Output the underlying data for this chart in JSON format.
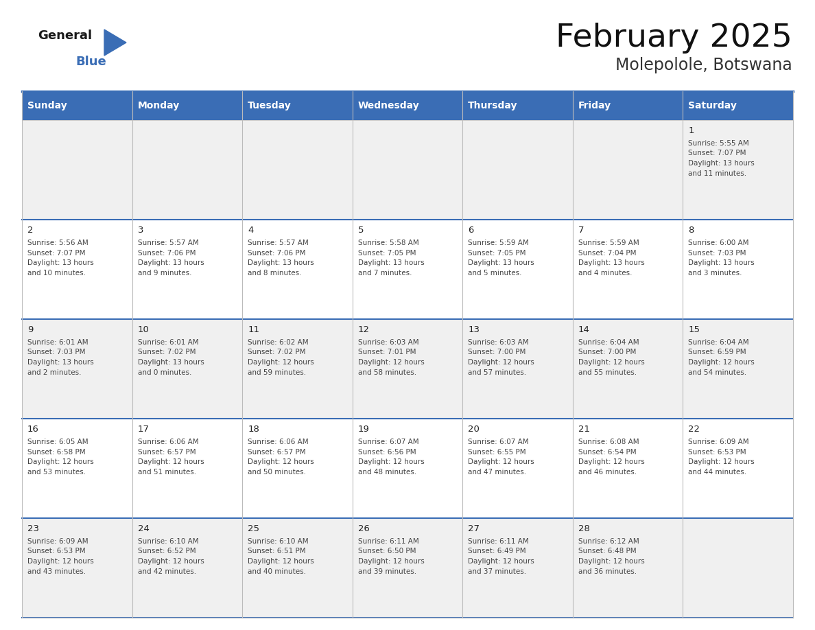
{
  "title": "February 2025",
  "subtitle": "Molepolole, Botswana",
  "days_of_week": [
    "Sunday",
    "Monday",
    "Tuesday",
    "Wednesday",
    "Thursday",
    "Friday",
    "Saturday"
  ],
  "header_bg": "#3a6db5",
  "header_text": "#FFFFFF",
  "cell_bg_odd": "#f0f0f0",
  "cell_bg_even": "#ffffff",
  "border_color": "#3a6db5",
  "text_color": "#444444",
  "day_number_color": "#222222",
  "logo_text_color": "#1a1a1a",
  "logo_blue_color": "#3a6db5",
  "title_color": "#111111",
  "subtitle_color": "#333333",
  "calendar_data": [
    [
      {
        "day": null,
        "sunrise": null,
        "sunset": null,
        "daylight": null
      },
      {
        "day": null,
        "sunrise": null,
        "sunset": null,
        "daylight": null
      },
      {
        "day": null,
        "sunrise": null,
        "sunset": null,
        "daylight": null
      },
      {
        "day": null,
        "sunrise": null,
        "sunset": null,
        "daylight": null
      },
      {
        "day": null,
        "sunrise": null,
        "sunset": null,
        "daylight": null
      },
      {
        "day": null,
        "sunrise": null,
        "sunset": null,
        "daylight": null
      },
      {
        "day": 1,
        "sunrise": "5:55 AM",
        "sunset": "7:07 PM",
        "daylight": "13 hours\nand 11 minutes."
      }
    ],
    [
      {
        "day": 2,
        "sunrise": "5:56 AM",
        "sunset": "7:07 PM",
        "daylight": "13 hours\nand 10 minutes."
      },
      {
        "day": 3,
        "sunrise": "5:57 AM",
        "sunset": "7:06 PM",
        "daylight": "13 hours\nand 9 minutes."
      },
      {
        "day": 4,
        "sunrise": "5:57 AM",
        "sunset": "7:06 PM",
        "daylight": "13 hours\nand 8 minutes."
      },
      {
        "day": 5,
        "sunrise": "5:58 AM",
        "sunset": "7:05 PM",
        "daylight": "13 hours\nand 7 minutes."
      },
      {
        "day": 6,
        "sunrise": "5:59 AM",
        "sunset": "7:05 PM",
        "daylight": "13 hours\nand 5 minutes."
      },
      {
        "day": 7,
        "sunrise": "5:59 AM",
        "sunset": "7:04 PM",
        "daylight": "13 hours\nand 4 minutes."
      },
      {
        "day": 8,
        "sunrise": "6:00 AM",
        "sunset": "7:03 PM",
        "daylight": "13 hours\nand 3 minutes."
      }
    ],
    [
      {
        "day": 9,
        "sunrise": "6:01 AM",
        "sunset": "7:03 PM",
        "daylight": "13 hours\nand 2 minutes."
      },
      {
        "day": 10,
        "sunrise": "6:01 AM",
        "sunset": "7:02 PM",
        "daylight": "13 hours\nand 0 minutes."
      },
      {
        "day": 11,
        "sunrise": "6:02 AM",
        "sunset": "7:02 PM",
        "daylight": "12 hours\nand 59 minutes."
      },
      {
        "day": 12,
        "sunrise": "6:03 AM",
        "sunset": "7:01 PM",
        "daylight": "12 hours\nand 58 minutes."
      },
      {
        "day": 13,
        "sunrise": "6:03 AM",
        "sunset": "7:00 PM",
        "daylight": "12 hours\nand 57 minutes."
      },
      {
        "day": 14,
        "sunrise": "6:04 AM",
        "sunset": "7:00 PM",
        "daylight": "12 hours\nand 55 minutes."
      },
      {
        "day": 15,
        "sunrise": "6:04 AM",
        "sunset": "6:59 PM",
        "daylight": "12 hours\nand 54 minutes."
      }
    ],
    [
      {
        "day": 16,
        "sunrise": "6:05 AM",
        "sunset": "6:58 PM",
        "daylight": "12 hours\nand 53 minutes."
      },
      {
        "day": 17,
        "sunrise": "6:06 AM",
        "sunset": "6:57 PM",
        "daylight": "12 hours\nand 51 minutes."
      },
      {
        "day": 18,
        "sunrise": "6:06 AM",
        "sunset": "6:57 PM",
        "daylight": "12 hours\nand 50 minutes."
      },
      {
        "day": 19,
        "sunrise": "6:07 AM",
        "sunset": "6:56 PM",
        "daylight": "12 hours\nand 48 minutes."
      },
      {
        "day": 20,
        "sunrise": "6:07 AM",
        "sunset": "6:55 PM",
        "daylight": "12 hours\nand 47 minutes."
      },
      {
        "day": 21,
        "sunrise": "6:08 AM",
        "sunset": "6:54 PM",
        "daylight": "12 hours\nand 46 minutes."
      },
      {
        "day": 22,
        "sunrise": "6:09 AM",
        "sunset": "6:53 PM",
        "daylight": "12 hours\nand 44 minutes."
      }
    ],
    [
      {
        "day": 23,
        "sunrise": "6:09 AM",
        "sunset": "6:53 PM",
        "daylight": "12 hours\nand 43 minutes."
      },
      {
        "day": 24,
        "sunrise": "6:10 AM",
        "sunset": "6:52 PM",
        "daylight": "12 hours\nand 42 minutes."
      },
      {
        "day": 25,
        "sunrise": "6:10 AM",
        "sunset": "6:51 PM",
        "daylight": "12 hours\nand 40 minutes."
      },
      {
        "day": 26,
        "sunrise": "6:11 AM",
        "sunset": "6:50 PM",
        "daylight": "12 hours\nand 39 minutes."
      },
      {
        "day": 27,
        "sunrise": "6:11 AM",
        "sunset": "6:49 PM",
        "daylight": "12 hours\nand 37 minutes."
      },
      {
        "day": 28,
        "sunrise": "6:12 AM",
        "sunset": "6:48 PM",
        "daylight": "12 hours\nand 36 minutes."
      },
      {
        "day": null,
        "sunrise": null,
        "sunset": null,
        "daylight": null
      }
    ]
  ]
}
